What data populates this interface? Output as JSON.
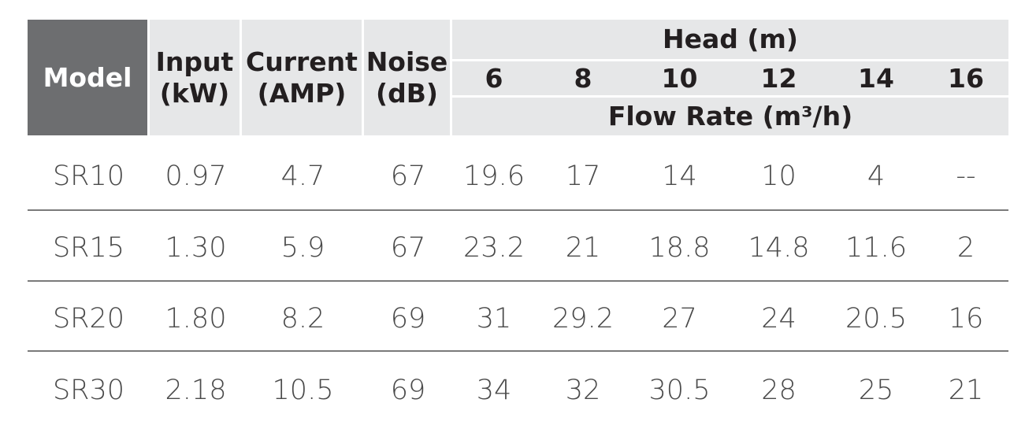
{
  "header": {
    "model": "Model",
    "input": "Input\n(kW)",
    "current": "Current\n(AMP)",
    "noise": "Noise\n(dB)",
    "head": "Head (m)",
    "head_values": [
      "6",
      "8",
      "10",
      "12",
      "14",
      "16"
    ],
    "flow_rate": "Flow Rate (m³/h)"
  },
  "table": {
    "rows": [
      [
        "SR10",
        "0.97",
        "4.7",
        "67",
        "19.6",
        "17",
        "14",
        "10",
        "4",
        "--"
      ],
      [
        "SR15",
        "1.30",
        "5.9",
        "67",
        "23.2",
        "21",
        "18.8",
        "14.8",
        "11.6",
        "2"
      ],
      [
        "SR20",
        "1.80",
        "8.2",
        "69",
        "31",
        "29.2",
        "27",
        "24",
        "20.5",
        "16"
      ],
      [
        "SR30",
        "2.18",
        "10.5",
        "69",
        "34",
        "32",
        "30.5",
        "28",
        "25",
        "21"
      ]
    ]
  }
}
